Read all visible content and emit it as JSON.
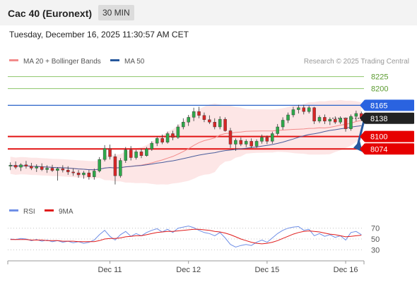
{
  "header": {
    "title": "Cac 40 (Euronext)",
    "timeframe": "30 MIN",
    "timestamp": "Tuesday, December 16, 2025 11:30:57 AM CET"
  },
  "colors": {
    "candle_up": "#2ea84a",
    "candle_down": "#d72626",
    "ma20": "#f28b8b",
    "bollinger_fill": "#fde2e2",
    "ma50": "#4a5d9c",
    "target_line": "#8cc46a",
    "pivot_line": "#2a63c9",
    "support_line": "#e21414",
    "arrow": "#27589d",
    "rsi": "#6f8fe6",
    "rsi_ma": "#e01b1b"
  },
  "chart_data": {
    "type": "candlestick",
    "legend": [
      {
        "name": "MA 20 + Bollinger Bands",
        "color": "#f28b8b"
      },
      {
        "name": "MA 50",
        "color": "#27589d"
      }
    ],
    "watermark": "Research © 2025 Trading Central",
    "ylim": [
      7970,
      8245
    ],
    "x_ticks": [
      {
        "label": "Dec 11",
        "index": 19
      },
      {
        "label": "Dec 12",
        "index": 34
      },
      {
        "label": "Dec 15",
        "index": 49
      },
      {
        "label": "Dec 16",
        "index": 64
      }
    ],
    "levels": [
      {
        "label": "8225",
        "value": 8225,
        "kind": "target"
      },
      {
        "label": "8200",
        "value": 8200,
        "kind": "target"
      },
      {
        "label": "8165",
        "value": 8165,
        "kind": "pivot"
      },
      {
        "label": "8138",
        "value": 8138,
        "kind": "last"
      },
      {
        "label": "8100",
        "value": 8100,
        "kind": "support"
      },
      {
        "label": "8074",
        "value": 8074,
        "kind": "support"
      }
    ],
    "candles": [
      {
        "o": 8038,
        "h": 8046,
        "l": 8030,
        "c": 8040
      },
      {
        "o": 8040,
        "h": 8048,
        "l": 8032,
        "c": 8036
      },
      {
        "o": 8036,
        "h": 8044,
        "l": 8028,
        "c": 8041
      },
      {
        "o": 8041,
        "h": 8049,
        "l": 8033,
        "c": 8038
      },
      {
        "o": 8038,
        "h": 8045,
        "l": 8030,
        "c": 8034
      },
      {
        "o": 8034,
        "h": 8042,
        "l": 8026,
        "c": 8037
      },
      {
        "o": 8037,
        "h": 8044,
        "l": 8028,
        "c": 8031
      },
      {
        "o": 8031,
        "h": 8040,
        "l": 8024,
        "c": 8034
      },
      {
        "o": 8034,
        "h": 8041,
        "l": 8026,
        "c": 8029
      },
      {
        "o": 8029,
        "h": 8036,
        "l": 8008,
        "c": 8033
      },
      {
        "o": 8033,
        "h": 8040,
        "l": 8025,
        "c": 8030
      },
      {
        "o": 8030,
        "h": 8038,
        "l": 8020,
        "c": 8026
      },
      {
        "o": 8026,
        "h": 8034,
        "l": 8018,
        "c": 8024
      },
      {
        "o": 8024,
        "h": 8030,
        "l": 8014,
        "c": 8020
      },
      {
        "o": 8020,
        "h": 8028,
        "l": 8012,
        "c": 8024
      },
      {
        "o": 8024,
        "h": 8030,
        "l": 8010,
        "c": 8016
      },
      {
        "o": 8016,
        "h": 8033,
        "l": 8010,
        "c": 8028
      },
      {
        "o": 8028,
        "h": 8057,
        "l": 8025,
        "c": 8052
      },
      {
        "o": 8052,
        "h": 8082,
        "l": 8048,
        "c": 8075
      },
      {
        "o": 8075,
        "h": 8083,
        "l": 8052,
        "c": 8058
      },
      {
        "o": 8058,
        "h": 8064,
        "l": 8000,
        "c": 8018
      },
      {
        "o": 8018,
        "h": 8055,
        "l": 8014,
        "c": 8050
      },
      {
        "o": 8050,
        "h": 8078,
        "l": 8045,
        "c": 8072
      },
      {
        "o": 8072,
        "h": 8080,
        "l": 8050,
        "c": 8056
      },
      {
        "o": 8056,
        "h": 8072,
        "l": 8052,
        "c": 8068
      },
      {
        "o": 8068,
        "h": 8075,
        "l": 8055,
        "c": 8060
      },
      {
        "o": 8060,
        "h": 8078,
        "l": 8058,
        "c": 8074
      },
      {
        "o": 8074,
        "h": 8090,
        "l": 8070,
        "c": 8086
      },
      {
        "o": 8086,
        "h": 8100,
        "l": 8080,
        "c": 8096
      },
      {
        "o": 8096,
        "h": 8104,
        "l": 8084,
        "c": 8088
      },
      {
        "o": 8088,
        "h": 8110,
        "l": 8085,
        "c": 8106
      },
      {
        "o": 8106,
        "h": 8112,
        "l": 8092,
        "c": 8098
      },
      {
        "o": 8098,
        "h": 8125,
        "l": 8095,
        "c": 8120
      },
      {
        "o": 8120,
        "h": 8138,
        "l": 8115,
        "c": 8130
      },
      {
        "o": 8130,
        "h": 8145,
        "l": 8122,
        "c": 8140
      },
      {
        "o": 8140,
        "h": 8160,
        "l": 8132,
        "c": 8152
      },
      {
        "o": 8152,
        "h": 8162,
        "l": 8138,
        "c": 8144
      },
      {
        "o": 8144,
        "h": 8150,
        "l": 8130,
        "c": 8135
      },
      {
        "o": 8135,
        "h": 8144,
        "l": 8126,
        "c": 8130
      },
      {
        "o": 8130,
        "h": 8138,
        "l": 8115,
        "c": 8120
      },
      {
        "o": 8120,
        "h": 8142,
        "l": 8115,
        "c": 8136
      },
      {
        "o": 8136,
        "h": 8140,
        "l": 8110,
        "c": 8112
      },
      {
        "o": 8112,
        "h": 8118,
        "l": 8076,
        "c": 8084
      },
      {
        "o": 8084,
        "h": 8096,
        "l": 8070,
        "c": 8092
      },
      {
        "o": 8092,
        "h": 8098,
        "l": 8080,
        "c": 8084
      },
      {
        "o": 8084,
        "h": 8094,
        "l": 8078,
        "c": 8090
      },
      {
        "o": 8090,
        "h": 8096,
        "l": 8076,
        "c": 8080
      },
      {
        "o": 8080,
        "h": 8094,
        "l": 8076,
        "c": 8090
      },
      {
        "o": 8090,
        "h": 8104,
        "l": 8085,
        "c": 8098
      },
      {
        "o": 8098,
        "h": 8102,
        "l": 8084,
        "c": 8090
      },
      {
        "o": 8090,
        "h": 8110,
        "l": 8085,
        "c": 8106
      },
      {
        "o": 8106,
        "h": 8126,
        "l": 8102,
        "c": 8120
      },
      {
        "o": 8120,
        "h": 8140,
        "l": 8114,
        "c": 8134
      },
      {
        "o": 8134,
        "h": 8150,
        "l": 8128,
        "c": 8145
      },
      {
        "o": 8145,
        "h": 8162,
        "l": 8140,
        "c": 8156
      },
      {
        "o": 8156,
        "h": 8166,
        "l": 8148,
        "c": 8160
      },
      {
        "o": 8160,
        "h": 8166,
        "l": 8146,
        "c": 8152
      },
      {
        "o": 8152,
        "h": 8164,
        "l": 8148,
        "c": 8160
      },
      {
        "o": 8160,
        "h": 8162,
        "l": 8126,
        "c": 8132
      },
      {
        "o": 8132,
        "h": 8144,
        "l": 8128,
        "c": 8140
      },
      {
        "o": 8140,
        "h": 8146,
        "l": 8126,
        "c": 8132
      },
      {
        "o": 8132,
        "h": 8140,
        "l": 8124,
        "c": 8136
      },
      {
        "o": 8136,
        "h": 8142,
        "l": 8126,
        "c": 8130
      },
      {
        "o": 8130,
        "h": 8142,
        "l": 8126,
        "c": 8138
      },
      {
        "o": 8138,
        "h": 8140,
        "l": 8110,
        "c": 8116
      },
      {
        "o": 8116,
        "h": 8146,
        "l": 8112,
        "c": 8142
      },
      {
        "o": 8142,
        "h": 8154,
        "l": 8132,
        "c": 8148
      },
      {
        "o": 8148,
        "h": 8152,
        "l": 8132,
        "c": 8138
      }
    ],
    "rsi_panel": {
      "legend": [
        {
          "name": "RSI",
          "color": "#6f8fe6"
        },
        {
          "name": "9MA",
          "color": "#e01b1b"
        }
      ],
      "ylim": [
        20,
        80
      ],
      "levels": [
        {
          "label": "70",
          "value": 70
        },
        {
          "label": "50",
          "value": 50
        },
        {
          "label": "30",
          "value": 30
        }
      ],
      "rsi": [
        50,
        49,
        51,
        50,
        47,
        49,
        46,
        48,
        45,
        47,
        44,
        46,
        43,
        45,
        42,
        44,
        48,
        58,
        66,
        55,
        48,
        58,
        64,
        55,
        60,
        56,
        62,
        66,
        69,
        63,
        68,
        62,
        70,
        72,
        74,
        71,
        66,
        62,
        60,
        56,
        62,
        52,
        40,
        35,
        38,
        40,
        38,
        44,
        48,
        44,
        52,
        60,
        66,
        70,
        72,
        73,
        66,
        68,
        56,
        60,
        55,
        58,
        53,
        56,
        48,
        62,
        64,
        58
      ],
      "rsi_ma": [
        49,
        49,
        49,
        49,
        48,
        48,
        48,
        47,
        47,
        47,
        46,
        46,
        46,
        45,
        45,
        45,
        45,
        47,
        50,
        51,
        51,
        52,
        54,
        55,
        56,
        56,
        58,
        60,
        62,
        63,
        64,
        64,
        65,
        66,
        67,
        68,
        68,
        67,
        66,
        64,
        63,
        61,
        58,
        54,
        50,
        47,
        44,
        42,
        41,
        42,
        44,
        47,
        51,
        55,
        59,
        62,
        64,
        65,
        64,
        63,
        61,
        59,
        58,
        56,
        54,
        55,
        56,
        57
      ]
    }
  }
}
